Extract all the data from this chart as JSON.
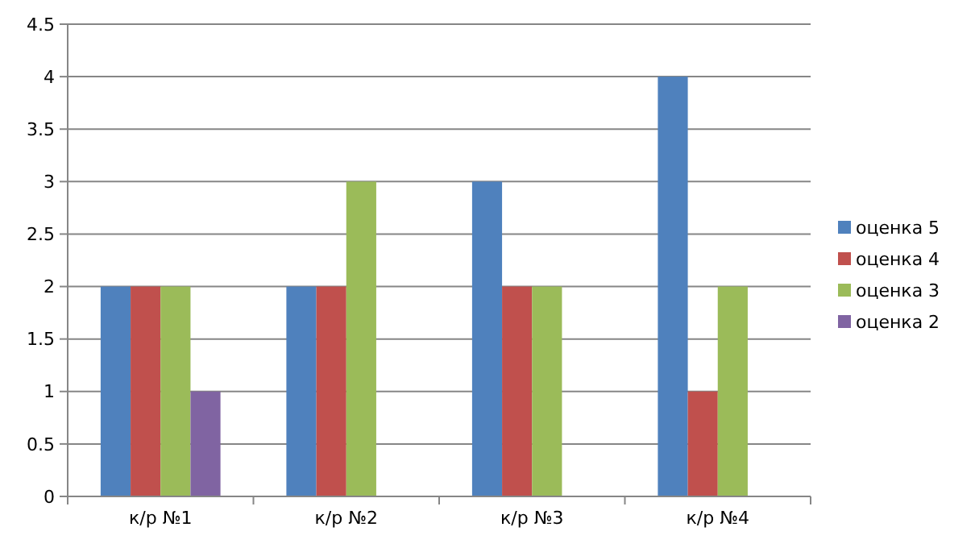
{
  "chart_data": {
    "type": "bar",
    "categories": [
      "к/р №1",
      "к/р №2",
      "к/р №3",
      "к/р №4"
    ],
    "series": [
      {
        "name": "оценка 5",
        "color": "#4f81bd",
        "values": [
          2,
          2,
          3,
          4
        ]
      },
      {
        "name": "оценка 4",
        "color": "#c0504d",
        "values": [
          2,
          2,
          2,
          1
        ]
      },
      {
        "name": "оценка 3",
        "color": "#9bbb59",
        "values": [
          2,
          3,
          2,
          2
        ]
      },
      {
        "name": "оценка 2",
        "color": "#8064a2",
        "values": [
          1,
          null,
          null,
          null
        ]
      }
    ],
    "ylim": [
      0,
      4.5
    ],
    "yticks": [
      0,
      0.5,
      1,
      1.5,
      2,
      2.5,
      3,
      3.5,
      4,
      4.5
    ],
    "grid": "y",
    "legend": "right"
  }
}
